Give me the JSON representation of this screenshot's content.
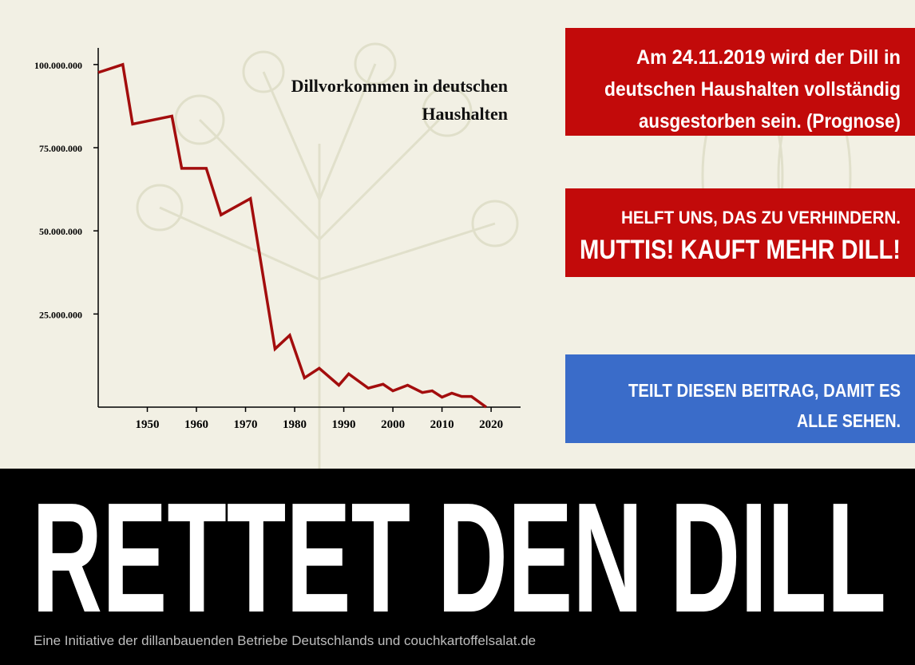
{
  "chart_data": {
    "type": "line",
    "title": "Dillvorkommen in deutschen Haushalten",
    "x": [
      1940,
      1945,
      1947,
      1955,
      1957,
      1962,
      1965,
      1971,
      1976,
      1979,
      1982,
      1985,
      1989,
      1991,
      1995,
      1998,
      2000,
      2003,
      2006,
      2008,
      2010,
      2012,
      2014,
      2016,
      2019
    ],
    "series": [
      {
        "color": "#a30d0d",
        "values": [
          97600000,
          100000000,
          82100000,
          84500000,
          68800000,
          68800000,
          54800000,
          59700000,
          14500000,
          18600000,
          5800000,
          8700000,
          3600000,
          7000000,
          2700000,
          3900000,
          1900000,
          3600000,
          1400000,
          1900000,
          0,
          1200000,
          200000,
          200000,
          -3000000
        ]
      }
    ],
    "xlim": [
      1940,
      2026
    ],
    "xticks": [
      1950,
      1960,
      1970,
      1980,
      1990,
      2000,
      2010,
      2020
    ],
    "ylim": [
      -3000000,
      105000000
    ],
    "yticks": [
      {
        "value": 25000000,
        "label": "25.000.000"
      },
      {
        "value": 50000000,
        "label": "50.000.000"
      },
      {
        "value": 75000000,
        "label": "75.000.000"
      },
      {
        "value": 100000000,
        "label": "100.000.000"
      }
    ]
  },
  "messages": [
    {
      "lines": [
        "Am 24.11.2019 wird der  Dill in",
        "deutschen Haushalten vollständig",
        "ausgestorben sein. (Prognose)"
      ]
    },
    {
      "lines": [
        "HELFT UNS, DAS ZU VERHINDERN.",
        "MUTTIS! KAUFT MEHR DILL!"
      ]
    },
    {
      "lines": [
        "TEILT DIESEN BEITRAG, DAMIT ES",
        "ALLE SEHEN."
      ]
    }
  ],
  "banner": {
    "title": "RETTET DEN DILL",
    "footer": "Eine Initiative der dillanbauenden Betriebe Deutschlands und couchkartoffelsalat.de"
  }
}
